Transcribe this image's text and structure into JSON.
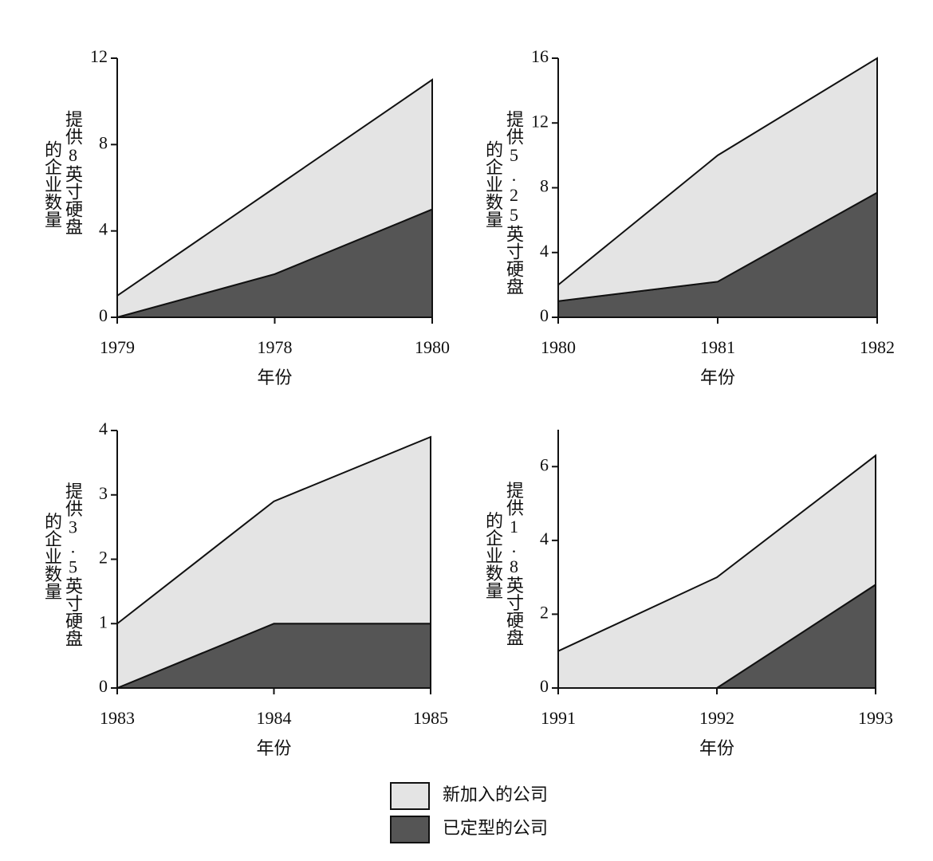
{
  "chart_data": [
    {
      "type": "area",
      "stacked": true,
      "ylabel_lines": [
        "提供8英寸硬盘",
        "的企业数量"
      ],
      "xlabel": "年份",
      "categories": [
        "1979",
        "1978",
        "1980"
      ],
      "ylim": [
        0,
        12
      ],
      "yticks": [
        0,
        4,
        8,
        12
      ],
      "series": [
        {
          "name": "已定型的公司",
          "color": "#555555",
          "values": [
            0,
            2,
            5
          ]
        },
        {
          "name": "新加入的公司",
          "color": "#e4e4e4",
          "values": [
            1,
            4,
            6
          ]
        }
      ]
    },
    {
      "type": "area",
      "stacked": true,
      "ylabel_lines": [
        "提供5.25英寸硬盘",
        "的企业数量"
      ],
      "xlabel": "年份",
      "categories": [
        "1980",
        "1981",
        "1982"
      ],
      "ylim": [
        0,
        16
      ],
      "yticks": [
        0,
        4,
        8,
        12,
        16
      ],
      "series": [
        {
          "name": "已定型的公司",
          "color": "#555555",
          "values": [
            1,
            2.2,
            7.7
          ]
        },
        {
          "name": "新加入的公司",
          "color": "#e4e4e4",
          "values": [
            1,
            7.8,
            8.3
          ]
        }
      ]
    },
    {
      "type": "area",
      "stacked": true,
      "ylabel_lines": [
        "提供3.5英寸硬盘",
        "的企业数量"
      ],
      "xlabel": "年份",
      "categories": [
        "1983",
        "1984",
        "1985"
      ],
      "ylim": [
        0,
        4
      ],
      "yticks": [
        0,
        1,
        2,
        3,
        4
      ],
      "series": [
        {
          "name": "已定型的公司",
          "color": "#555555",
          "values": [
            0,
            1,
            1
          ]
        },
        {
          "name": "新加入的公司",
          "color": "#e4e4e4",
          "values": [
            1,
            1.9,
            2.9
          ]
        }
      ]
    },
    {
      "type": "area",
      "stacked": true,
      "ylabel_lines": [
        "提供1.8英寸硬盘",
        "的企业数量"
      ],
      "xlabel": "年份",
      "categories": [
        "1991",
        "1992",
        "1993"
      ],
      "ylim": [
        0,
        7
      ],
      "yticks": [
        0,
        2,
        4,
        6
      ],
      "series": [
        {
          "name": "已定型的公司",
          "color": "#555555",
          "values": [
            0,
            0,
            2.8
          ]
        },
        {
          "name": "新加入的公司",
          "color": "#e4e4e4",
          "values": [
            1,
            3,
            3.5
          ]
        }
      ]
    }
  ]
}
